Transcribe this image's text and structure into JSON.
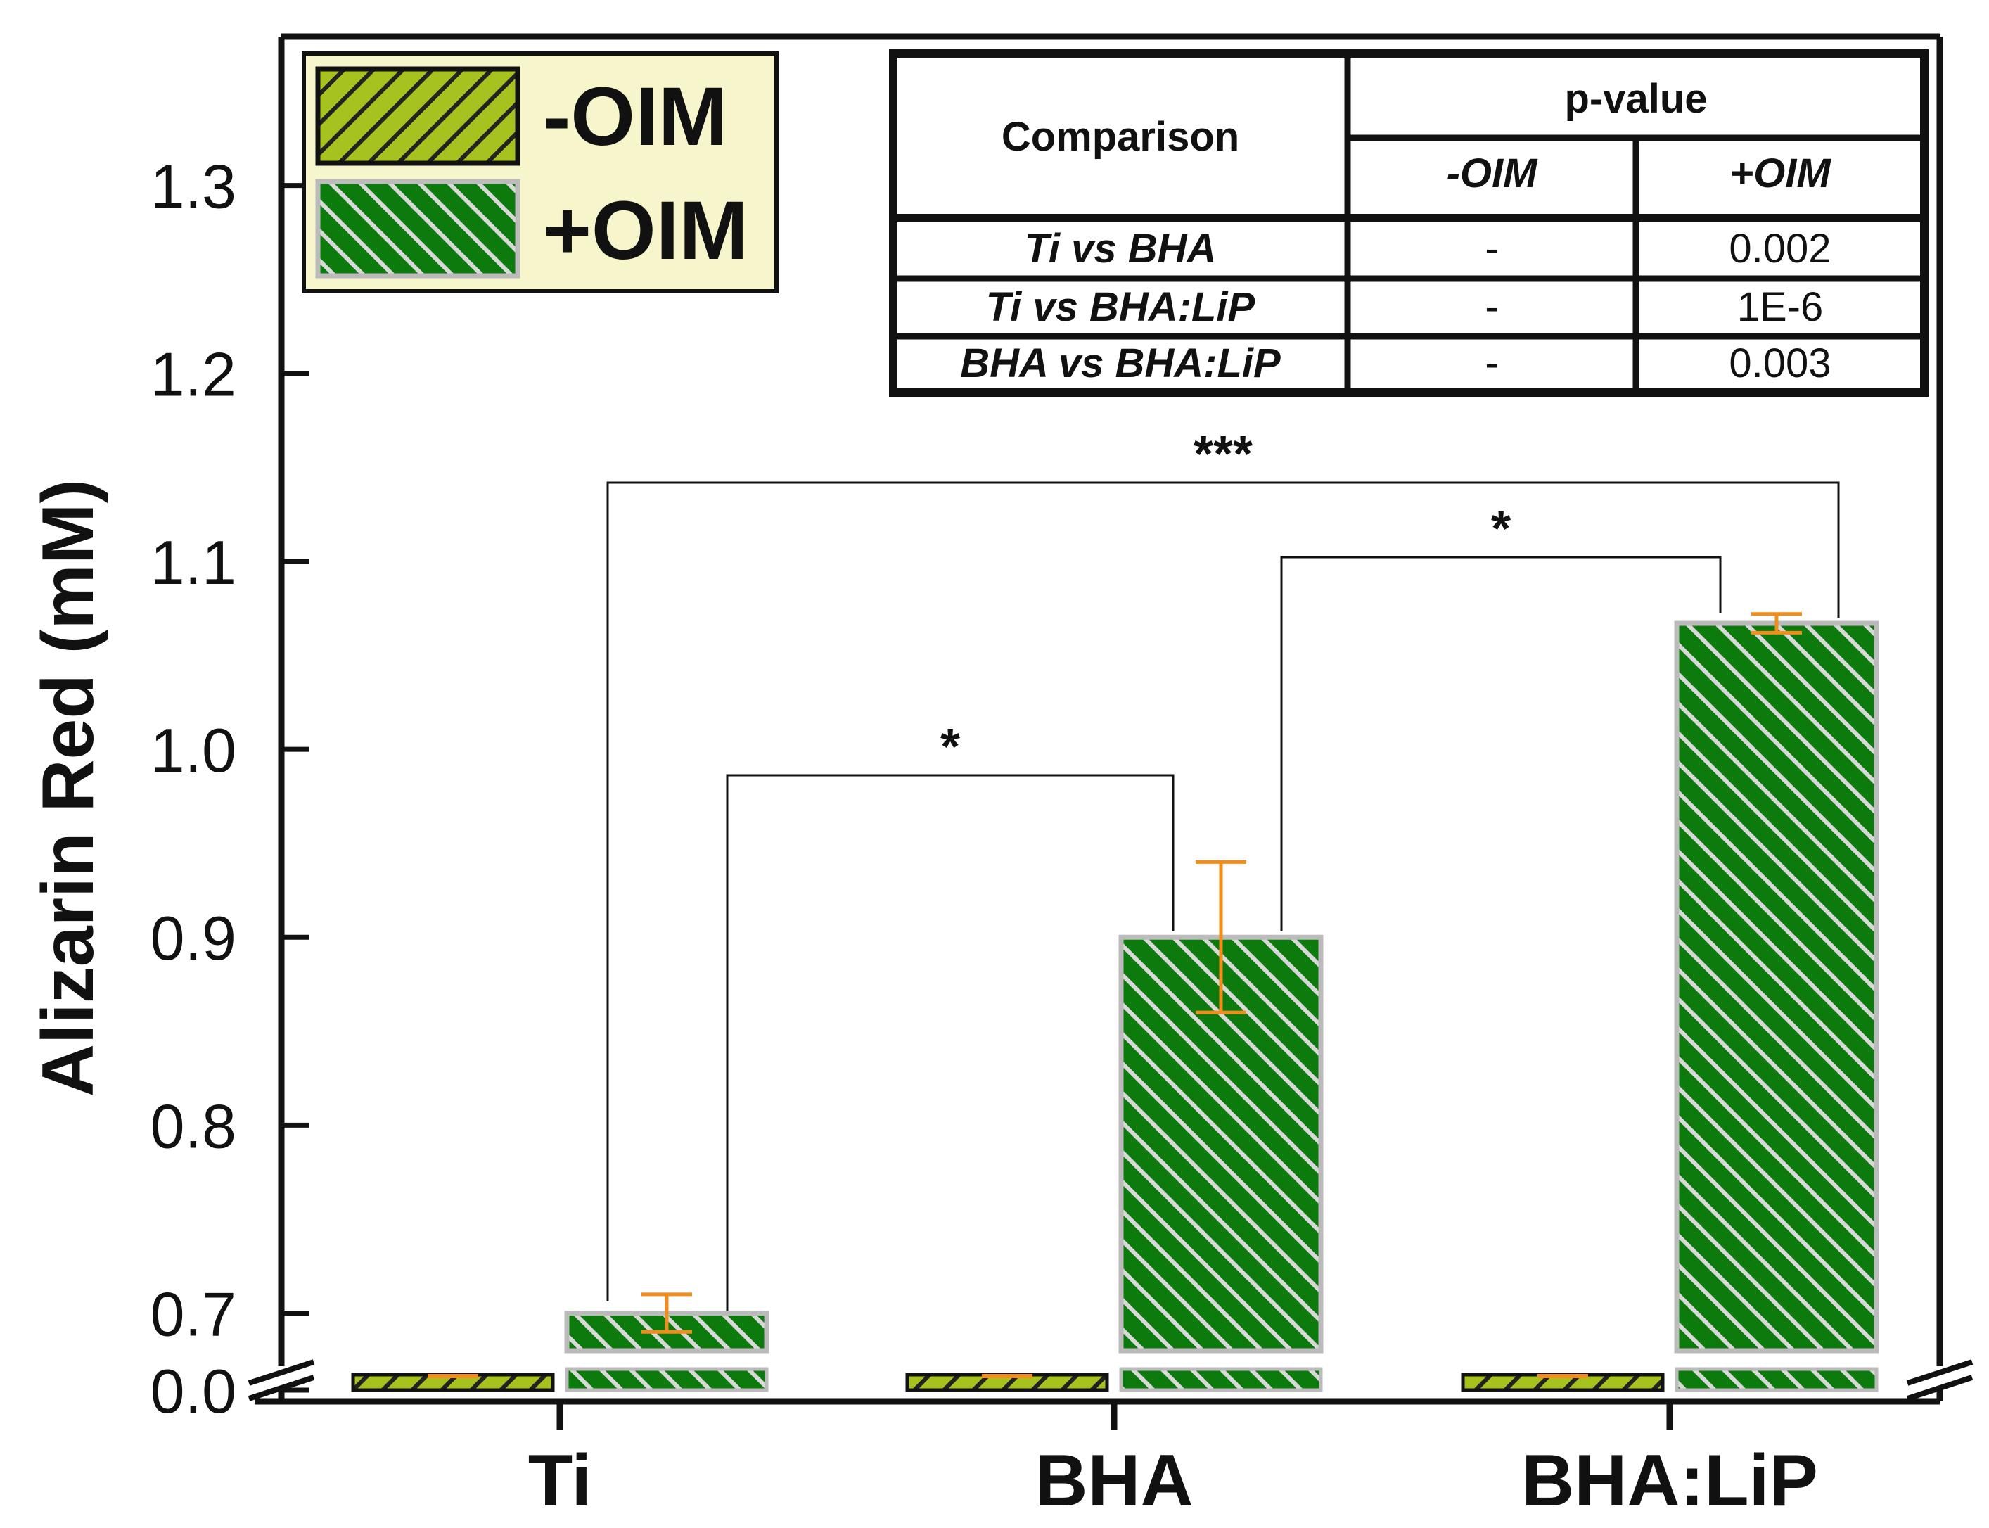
{
  "chart_data": {
    "type": "bar",
    "categories": [
      "Ti",
      "BHA",
      "BHA:LiP"
    ],
    "ylabel": "Alizarin Red (mM)",
    "xlabel": "",
    "ylim": [
      0.0,
      1.37
    ],
    "axis_break": [
      0.0,
      0.68
    ],
    "y_ticks": [
      "0.0",
      "0.7",
      "0.8",
      "0.9",
      "1.0",
      "1.1",
      "1.2",
      "1.3"
    ],
    "y_tick_values": [
      0.0,
      0.7,
      0.8,
      0.9,
      1.0,
      1.1,
      1.2,
      1.3
    ],
    "series": [
      {
        "name": "-OIM",
        "values": [
          0.0,
          0.0,
          0.0
        ],
        "errors": [
          0.0,
          0.0,
          0.0
        ],
        "color": "#a6c21f",
        "hatch": "forward"
      },
      {
        "name": "+OIM",
        "values": [
          0.7,
          0.9,
          1.067
        ],
        "errors": [
          0.01,
          0.04,
          0.005
        ],
        "color": "#0c7a0c",
        "hatch": "backward"
      }
    ],
    "error_color": "#f28c1a",
    "significance": [
      {
        "from": "Ti",
        "to": "BHA",
        "label": "*"
      },
      {
        "from": "BHA",
        "to": "BHA:LiP",
        "label": "*"
      },
      {
        "from": "Ti",
        "to": "BHA:LiP",
        "label": "***"
      }
    ],
    "legend": {
      "placement": "top-left",
      "entries": [
        "-OIM",
        "+OIM"
      ]
    }
  },
  "pvalue_table": {
    "title_comparison": "Comparison",
    "title_pvalue": "p-value",
    "col_minus": "-OIM",
    "col_plus": "+OIM",
    "rows": [
      {
        "comparison": "Ti vs BHA",
        "minus": "-",
        "plus": "0.002"
      },
      {
        "comparison": "Ti vs BHA:LiP",
        "minus": "-",
        "plus": "1E-6"
      },
      {
        "comparison": "BHA vs BHA:LiP",
        "minus": "-",
        "plus": "0.003"
      }
    ]
  }
}
